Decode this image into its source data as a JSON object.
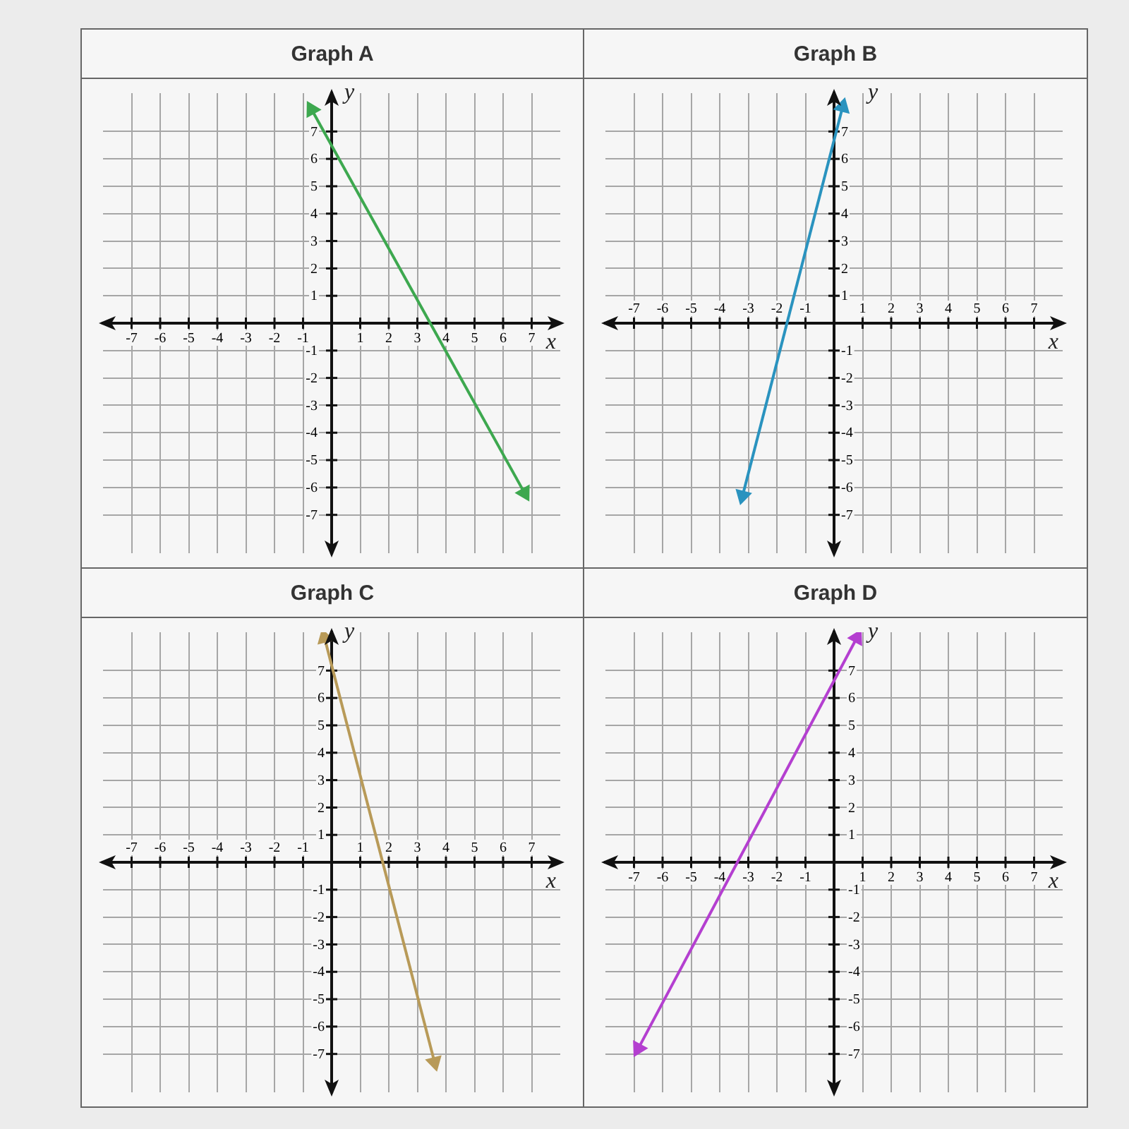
{
  "chart_data": [
    {
      "type": "line",
      "title": "Graph A",
      "x": [
        -0.7,
        6.75
      ],
      "values": [
        7.8,
        -6.2
      ],
      "color": "#3da84f",
      "xlim": [
        -8,
        8
      ],
      "ylim": [
        -8.4,
        8.4
      ],
      "xticks": [
        -7,
        -6,
        -5,
        -4,
        -3,
        -2,
        -1,
        1,
        2,
        3,
        4,
        5,
        6,
        7
      ],
      "yticks": [
        -7,
        -6,
        -5,
        -4,
        -3,
        -2,
        -1,
        1,
        2,
        3,
        4,
        5,
        6,
        7
      ],
      "xlabel": "x",
      "ylabel": "y",
      "grid": true,
      "marker": "triangle"
    },
    {
      "type": "line",
      "title": "Graph B",
      "x": [
        -3.2,
        0.3
      ],
      "values": [
        -6.3,
        7.9
      ],
      "color": "#2a93bf",
      "xlim": [
        -8,
        8
      ],
      "ylim": [
        -8.4,
        8.4
      ],
      "xticks": [
        -7,
        -6,
        -5,
        -4,
        -3,
        -2,
        -1,
        1,
        2,
        3,
        4,
        5,
        6,
        7
      ],
      "yticks": [
        -7,
        -6,
        -5,
        -4,
        -3,
        -2,
        -1,
        1,
        2,
        3,
        4,
        5,
        6,
        7
      ],
      "xlabel": "x",
      "ylabel": "y",
      "grid": true,
      "marker": "triangle"
    },
    {
      "type": "line",
      "title": "Graph C",
      "x": [
        -0.25,
        3.6
      ],
      "values": [
        8.2,
        -7.3
      ],
      "color": "#b89a58",
      "xlim": [
        -8,
        8
      ],
      "ylim": [
        -8.4,
        8.4
      ],
      "xticks": [
        -7,
        -6,
        -5,
        -4,
        -3,
        -2,
        -1,
        1,
        2,
        3,
        4,
        5,
        6,
        7
      ],
      "yticks": [
        -7,
        -6,
        -5,
        -4,
        -3,
        -2,
        -1,
        1,
        2,
        3,
        4,
        5,
        6,
        7
      ],
      "xlabel": "x",
      "ylabel": "y",
      "grid": true,
      "marker": "triangle"
    },
    {
      "type": "line",
      "title": "Graph D",
      "x": [
        -6.85,
        0.8
      ],
      "values": [
        -6.8,
        8.2
      ],
      "color": "#b43fd0",
      "xlim": [
        -8,
        8
      ],
      "ylim": [
        -8.4,
        8.4
      ],
      "xticks": [
        -7,
        -6,
        -5,
        -4,
        -3,
        -2,
        -1,
        1,
        2,
        3,
        4,
        5,
        6,
        7
      ],
      "yticks": [
        -7,
        -6,
        -5,
        -4,
        -3,
        -2,
        -1,
        1,
        2,
        3,
        4,
        5,
        6,
        7
      ],
      "xlabel": "x",
      "ylabel": "y",
      "grid": true,
      "marker": "triangle"
    }
  ]
}
